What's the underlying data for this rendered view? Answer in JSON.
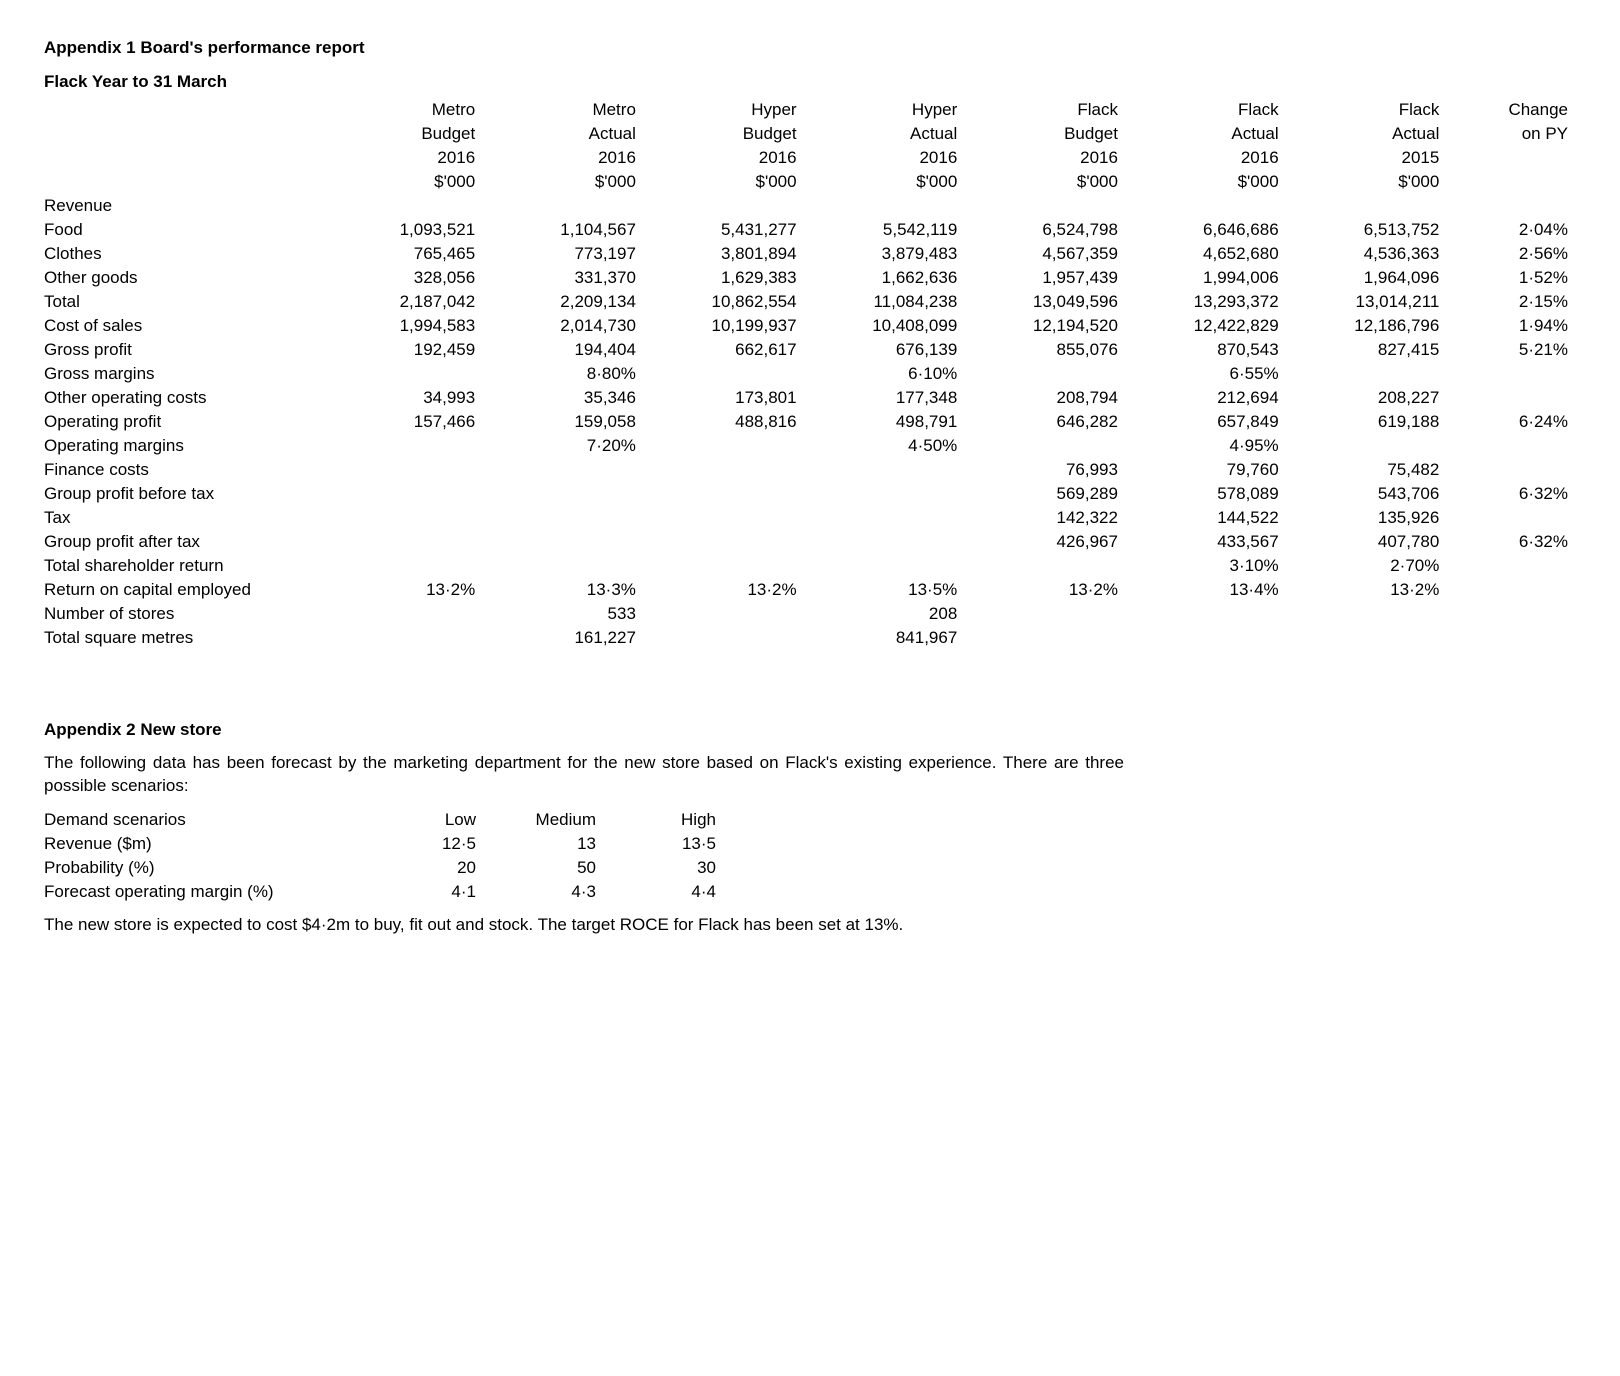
{
  "appendix1": {
    "title": "Appendix 1 Board's performance report",
    "subtitle": "Flack   Year to 31 March",
    "columns": [
      {
        "l1": "Metro",
        "l2": "Budget",
        "l3": "2016",
        "l4": "$'000"
      },
      {
        "l1": "Metro",
        "l2": "Actual",
        "l3": "2016",
        "l4": "$'000"
      },
      {
        "l1": "Hyper",
        "l2": "Budget",
        "l3": "2016",
        "l4": "$'000"
      },
      {
        "l1": "Hyper",
        "l2": "Actual",
        "l3": "2016",
        "l4": "$'000"
      },
      {
        "l1": "Flack",
        "l2": "Budget",
        "l3": "2016",
        "l4": "$'000"
      },
      {
        "l1": "Flack",
        "l2": "Actual",
        "l3": "2016",
        "l4": "$'000"
      },
      {
        "l1": "Flack",
        "l2": "Actual",
        "l3": "2015",
        "l4": "$'000"
      },
      {
        "l1": "Change",
        "l2": "on PY",
        "l3": "",
        "l4": ""
      }
    ],
    "rows": [
      {
        "label": "Revenue",
        "bold": true,
        "gap": true,
        "vals": [
          "",
          "",
          "",
          "",
          "",
          "",
          "",
          ""
        ]
      },
      {
        "label": "Food",
        "vals": [
          "1,093,521",
          "1,104,567",
          "5,431,277",
          "5,542,119",
          "6,524,798",
          "6,646,686",
          "6,513,752",
          "2·04%"
        ]
      },
      {
        "label": "Clothes",
        "vals": [
          "765,465",
          "773,197",
          "3,801,894",
          "3,879,483",
          "4,567,359",
          "4,652,680",
          "4,536,363",
          "2·56%"
        ]
      },
      {
        "label": "Other goods",
        "vals": [
          "328,056",
          "331,370",
          "1,629,383",
          "1,662,636",
          "1,957,439",
          "1,994,006",
          "1,964,096",
          "1·52%"
        ]
      },
      {
        "label": "Total",
        "bold": true,
        "vals": [
          "2,187,042",
          "2,209,134",
          "10,862,554",
          "11,084,238",
          "13,049,596",
          "13,293,372",
          "13,014,211",
          "2·15%"
        ]
      },
      {
        "label": "Cost of sales",
        "bold": true,
        "gap": true,
        "vals": [
          "1,994,583",
          "2,014,730",
          "10,199,937",
          "10,408,099",
          "12,194,520",
          "12,422,829",
          "12,186,796",
          "1·94%"
        ]
      },
      {
        "label": "Gross profit",
        "bold": true,
        "gap": true,
        "vals": [
          "192,459",
          "194,404",
          "662,617",
          "676,139",
          "855,076",
          "870,543",
          "827,415",
          "5·21%"
        ]
      },
      {
        "label": "Gross margins",
        "bold": true,
        "vals": [
          "",
          "8·80%",
          "",
          "6·10%",
          "",
          "6·55%",
          "",
          ""
        ]
      },
      {
        "label": "Other operating costs",
        "bold": true,
        "gap": true,
        "vals": [
          "34,993",
          "35,346",
          "173,801",
          "177,348",
          "208,794",
          "212,694",
          "208,227",
          ""
        ]
      },
      {
        "label": "Operating profit",
        "bold": true,
        "gap": true,
        "vals": [
          "157,466",
          "159,058",
          "488,816",
          "498,791",
          "646,282",
          "657,849",
          "619,188",
          "6·24%"
        ]
      },
      {
        "label": "Operating margins",
        "bold": true,
        "vals": [
          "",
          "7·20%",
          "",
          "4·50%",
          "",
          "4·95%",
          "",
          ""
        ]
      },
      {
        "label": "Finance costs",
        "bold": true,
        "gap": true,
        "vals": [
          "",
          "",
          "",
          "",
          "76,993",
          "79,760",
          "75,482",
          ""
        ]
      },
      {
        "label": "Group profit before tax",
        "bold": true,
        "gap": true,
        "boldvals": true,
        "vals": [
          "",
          "",
          "",
          "",
          "569,289",
          "578,089",
          "543,706",
          "6·32%"
        ]
      },
      {
        "label": "Tax",
        "bold": true,
        "vals": [
          "",
          "",
          "",
          "",
          "142,322",
          "144,522",
          "135,926",
          ""
        ]
      },
      {
        "label": "Group profit after tax",
        "bold": true,
        "boldvals": true,
        "vals": [
          "",
          "",
          "",
          "",
          "426,967",
          "433,567",
          "407,780",
          "6·32%"
        ]
      },
      {
        "label": "Total shareholder return",
        "bold": true,
        "gap": true,
        "vals": [
          "",
          "",
          "",
          "",
          "",
          "3·10%",
          "2·70%",
          ""
        ]
      },
      {
        "label": "Return on capital employed",
        "bold": true,
        "vals": [
          "13·2%",
          "13·3%",
          "13·2%",
          "13·5%",
          "13·2%",
          "13·4%",
          "13·2%",
          ""
        ]
      },
      {
        "label": "Number of stores",
        "bold": true,
        "gap": true,
        "vals": [
          "",
          "533",
          "",
          "208",
          "",
          "",
          "",
          ""
        ]
      },
      {
        "label": "Total square metres",
        "bold": true,
        "vals": [
          "",
          "161,227",
          "",
          "841,967",
          "",
          "",
          "",
          ""
        ]
      }
    ]
  },
  "appendix2": {
    "title": "Appendix 2 New store",
    "intro": "The following data has been forecast by the marketing department for the new store based on Flack's existing experience. There are three possible scenarios:",
    "scenario_header": "Demand scenarios",
    "scenario_cols": [
      "Low",
      "Medium",
      "High"
    ],
    "scenario_rows": [
      {
        "label": "Revenue ($m)",
        "vals": [
          "12·5",
          "13",
          "13·5"
        ]
      },
      {
        "label": "Probability (%)",
        "vals": [
          "20",
          "50",
          "30"
        ]
      },
      {
        "label": "Forecast operating margin (%)",
        "vals": [
          "4·1",
          "4·3",
          "4·4"
        ]
      }
    ],
    "footer": "The new store is expected to cost $4·2m to buy, fit out and stock. The target ROCE for Flack has been set at 13%."
  }
}
